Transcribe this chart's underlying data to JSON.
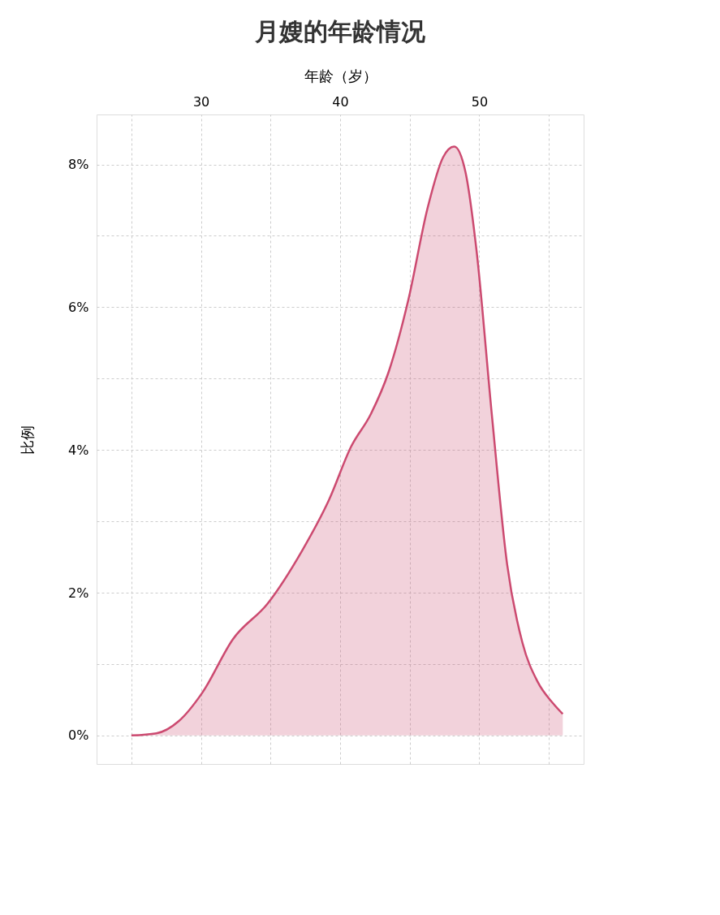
{
  "chart_data": {
    "type": "area",
    "title": "月嫂的年龄情况",
    "xlabel": "年龄（岁）",
    "ylabel": "比例",
    "x": [
      25,
      26.8,
      28.4,
      30.1,
      32.3,
      34.8,
      37.3,
      39.2,
      40.8,
      42.2,
      43.5,
      44.9,
      46.3,
      47.4,
      48.2,
      49.0,
      49.8,
      50.9,
      52.0,
      53.1,
      54.2,
      55.3,
      56.0
    ],
    "series": [
      {
        "color": "#cc4a70",
        "values": [
          0,
          0.03,
          0.2,
          0.6,
          1.35,
          1.85,
          2.6,
          3.3,
          4.05,
          4.5,
          5.1,
          6.1,
          7.4,
          8.1,
          8.25,
          7.9,
          6.8,
          4.5,
          2.4,
          1.3,
          0.75,
          0.45,
          0.3
        ]
      }
    ],
    "xlim": [
      22.5,
      57.5
    ],
    "ylim": [
      -0.4,
      8.7
    ],
    "xticks": [
      {
        "value": 25,
        "label": null
      },
      30,
      {
        "value": 35,
        "label": null
      },
      40,
      {
        "value": 45,
        "label": null
      },
      50,
      {
        "value": 55,
        "label": null
      }
    ],
    "yticks": [
      {
        "value": 0,
        "label": "0%"
      },
      {
        "value": 1,
        "label": null
      },
      {
        "value": 2,
        "label": "2%"
      },
      {
        "value": 3,
        "label": null
      },
      {
        "value": 4,
        "label": "4%"
      },
      {
        "value": 5,
        "label": null
      },
      {
        "value": 6,
        "label": "6%"
      },
      {
        "value": 7,
        "label": null
      },
      {
        "value": 8,
        "label": "8%"
      }
    ],
    "grid": true
  }
}
